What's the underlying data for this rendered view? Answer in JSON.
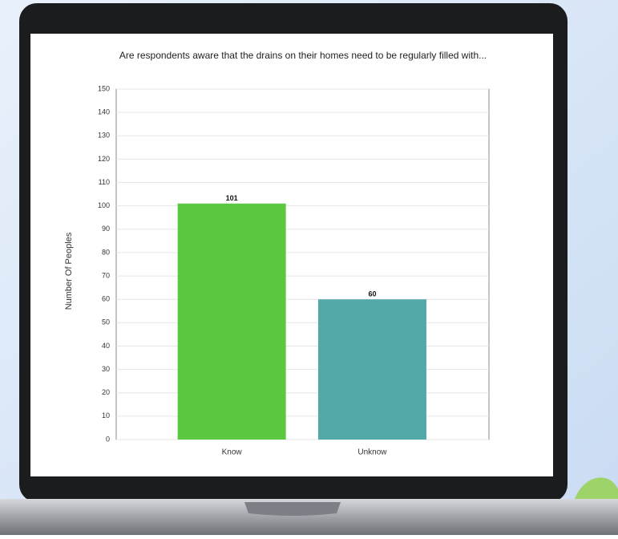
{
  "chart_data": {
    "type": "bar",
    "title": "Are respondents aware that the drains on their homes need to be regularly filled with...",
    "y_label": "Number Of Peoples",
    "categories": [
      "Know",
      "Unknow"
    ],
    "values": [
      101,
      60
    ],
    "colors": [
      "#5bc83f",
      "#52a9a8"
    ],
    "ylim": [
      0,
      150
    ],
    "yticks": [
      0,
      10,
      20,
      30,
      40,
      50,
      60,
      70,
      80,
      90,
      100,
      110,
      120,
      130,
      140,
      150
    ],
    "grid": true
  }
}
